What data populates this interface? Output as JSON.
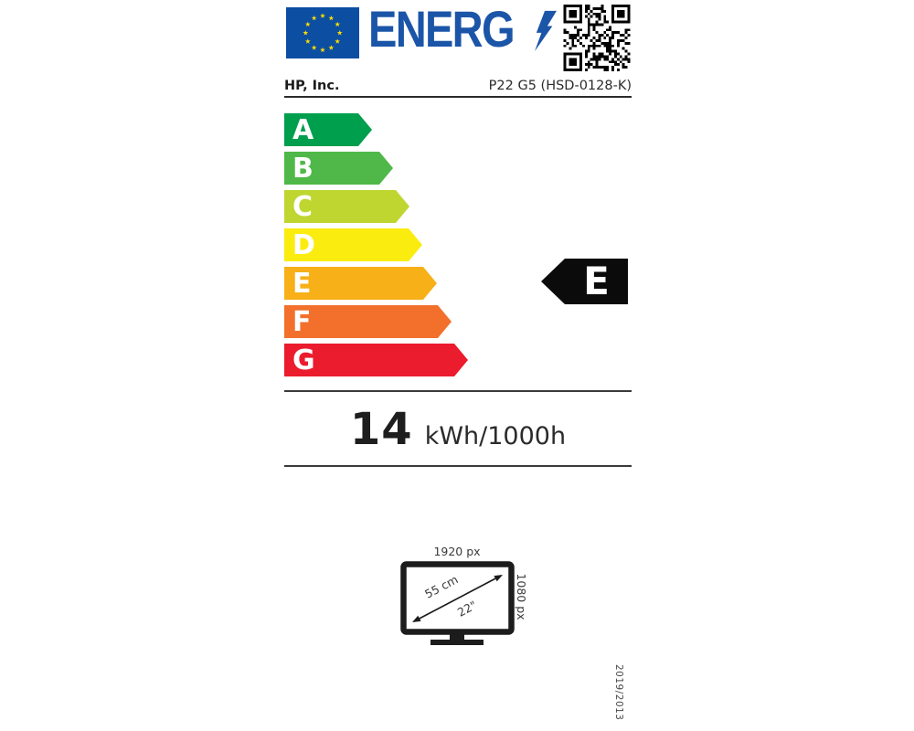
{
  "logo": {
    "text": "ENERG",
    "bolt_icon": "lightning-bolt",
    "flag_icon": "eu-flag",
    "qr_icon": "qr-code"
  },
  "colors": {
    "logo_blue": "#1B55A8",
    "flag_blue": "#0B4EA2",
    "star_yellow": "#FFDD00",
    "rating_black": "#0b0b0b"
  },
  "supplier": {
    "brand": "HP, Inc.",
    "model": "P22 G5 (HSD-0128-K)"
  },
  "scale": {
    "classes": [
      {
        "label": "A",
        "color": "#009F4D"
      },
      {
        "label": "B",
        "color": "#4FB848"
      },
      {
        "label": "C",
        "color": "#BFD630"
      },
      {
        "label": "D",
        "color": "#FBEC10"
      },
      {
        "label": "E",
        "color": "#F8B018"
      },
      {
        "label": "F",
        "color": "#F2702C"
      },
      {
        "label": "G",
        "color": "#EB1C2D"
      }
    ]
  },
  "rating": {
    "class": "E"
  },
  "consumption": {
    "value": "14",
    "unit": "kWh/1000h"
  },
  "screen": {
    "width": "1920 px",
    "height": "1080 px",
    "diagonal_cm": "55 cm",
    "diagonal_inch": "22\""
  },
  "regulation": "2019/2013"
}
